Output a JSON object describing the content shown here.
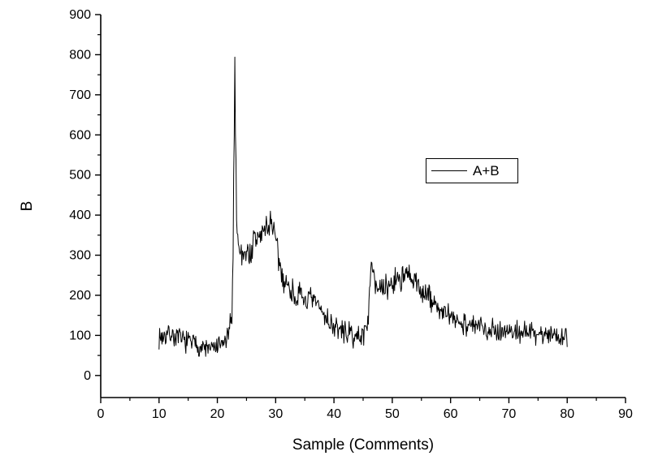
{
  "page": {
    "background": "#ffffff"
  },
  "chart_data": {
    "type": "line",
    "title": "",
    "xlabel": "Sample (Comments)",
    "ylabel": "B",
    "xlim": [
      0,
      90
    ],
    "ylim": [
      -55,
      900
    ],
    "xticks": [
      0,
      10,
      20,
      30,
      40,
      50,
      60,
      70,
      80,
      90
    ],
    "yticks": [
      0,
      100,
      200,
      300,
      400,
      500,
      600,
      700,
      800,
      900
    ],
    "x_minor_step": 5,
    "y_minor_step": 50,
    "grid": false,
    "axis_color": "#000000",
    "legend": {
      "label": "A+B",
      "position": "inside-upper-right"
    },
    "series": [
      {
        "name": "A+B",
        "color": "#000000",
        "x_range": [
          10,
          80
        ],
        "x_step": 0.1,
        "noise": {
          "base": 25,
          "scale": 0.08,
          "cap": 500,
          "seed": 7,
          "min": 40,
          "max": 805
        },
        "keypoints": [
          [
            10,
            95
          ],
          [
            11,
            100
          ],
          [
            12,
            105
          ],
          [
            12.5,
            98
          ],
          [
            13,
            95
          ],
          [
            14,
            88
          ],
          [
            15,
            85
          ],
          [
            16,
            80
          ],
          [
            17,
            72
          ],
          [
            18,
            68
          ],
          [
            19,
            66
          ],
          [
            20,
            70
          ],
          [
            21,
            78
          ],
          [
            22,
            100
          ],
          [
            22.5,
            160
          ],
          [
            22.7,
            300
          ],
          [
            22.85,
            550
          ],
          [
            23,
            790
          ],
          [
            23.15,
            560
          ],
          [
            23.3,
            400
          ],
          [
            23.6,
            330
          ],
          [
            24,
            300
          ],
          [
            24.5,
            310
          ],
          [
            25,
            315
          ],
          [
            25.5,
            295
          ],
          [
            26,
            320
          ],
          [
            26.5,
            335
          ],
          [
            27,
            345
          ],
          [
            27.5,
            350
          ],
          [
            28,
            360
          ],
          [
            28.5,
            370
          ],
          [
            29,
            380
          ],
          [
            29.3,
            390
          ],
          [
            29.6,
            360
          ],
          [
            30,
            330
          ],
          [
            30.5,
            290
          ],
          [
            31,
            255
          ],
          [
            31.5,
            235
          ],
          [
            32,
            225
          ],
          [
            32.5,
            215
          ],
          [
            33,
            205
          ],
          [
            33.5,
            200
          ],
          [
            34,
            195
          ],
          [
            34.5,
            192
          ],
          [
            35,
            190
          ],
          [
            35.5,
            188
          ],
          [
            36,
            185
          ],
          [
            36.5,
            182
          ],
          [
            37,
            178
          ],
          [
            37.5,
            170
          ],
          [
            38,
            158
          ],
          [
            38.5,
            148
          ],
          [
            39,
            138
          ],
          [
            39.5,
            130
          ],
          [
            40,
            122
          ],
          [
            40.5,
            118
          ],
          [
            41,
            113
          ],
          [
            41.5,
            110
          ],
          [
            42,
            108
          ],
          [
            42.5,
            104
          ],
          [
            43,
            100
          ],
          [
            43.5,
            97
          ],
          [
            44,
            95
          ],
          [
            44.5,
            98
          ],
          [
            45,
            105
          ],
          [
            45.5,
            118
          ],
          [
            46,
            165
          ],
          [
            46.4,
            275
          ],
          [
            46.6,
            295
          ],
          [
            47,
            250
          ],
          [
            47.5,
            215
          ],
          [
            48,
            205
          ],
          [
            48.5,
            210
          ],
          [
            49,
            218
          ],
          [
            49.5,
            225
          ],
          [
            50,
            232
          ],
          [
            50.5,
            238
          ],
          [
            51,
            242
          ],
          [
            51.5,
            245
          ],
          [
            52,
            246
          ],
          [
            52.5,
            244
          ],
          [
            53,
            240
          ],
          [
            53.5,
            235
          ],
          [
            54,
            228
          ],
          [
            54.5,
            222
          ],
          [
            55,
            214
          ],
          [
            55.5,
            206
          ],
          [
            56,
            198
          ],
          [
            56.5,
            190
          ],
          [
            57,
            182
          ],
          [
            57.5,
            175
          ],
          [
            58,
            168
          ],
          [
            58.5,
            160
          ],
          [
            59,
            153
          ],
          [
            59.5,
            148
          ],
          [
            60,
            143
          ],
          [
            61,
            138
          ],
          [
            62,
            133
          ],
          [
            63,
            128
          ],
          [
            64,
            124
          ],
          [
            65,
            120
          ],
          [
            66,
            118
          ],
          [
            67,
            116
          ],
          [
            68,
            114
          ],
          [
            69,
            112
          ],
          [
            70,
            111
          ],
          [
            71,
            110
          ],
          [
            72,
            109
          ],
          [
            73,
            108
          ],
          [
            74,
            106
          ],
          [
            75,
            105
          ],
          [
            76,
            104
          ],
          [
            77,
            103
          ],
          [
            78,
            102
          ],
          [
            79,
            100
          ],
          [
            80,
            98
          ]
        ]
      }
    ]
  }
}
